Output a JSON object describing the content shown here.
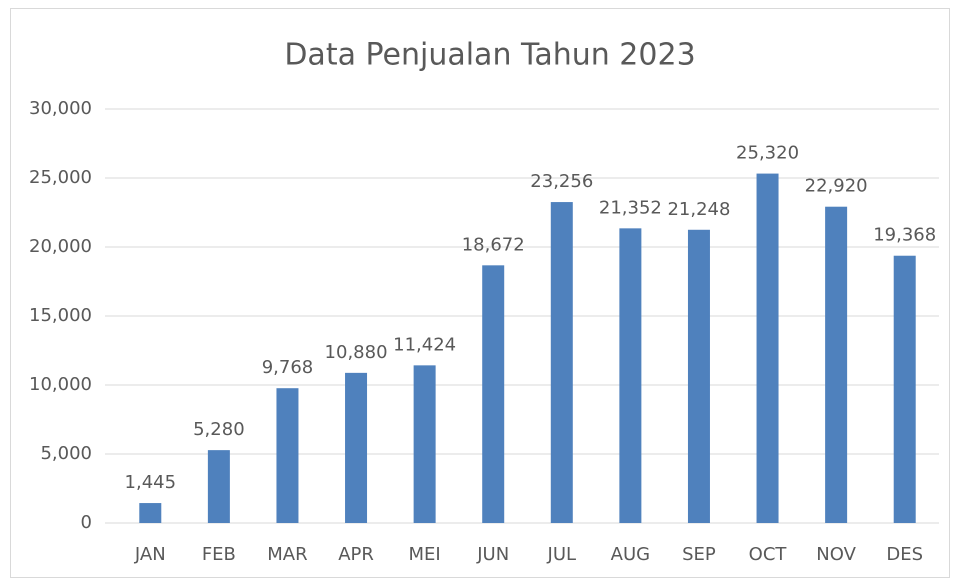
{
  "chart_data": {
    "type": "bar",
    "title": "Data Penjualan Tahun 2023",
    "categories": [
      "JAN",
      "FEB",
      "MAR",
      "APR",
      "MEI",
      "JUN",
      "JUL",
      "AUG",
      "SEP",
      "OCT",
      "NOV",
      "DES"
    ],
    "values": [
      1445,
      5280,
      9768,
      10880,
      11424,
      18672,
      23256,
      21352,
      21248,
      25320,
      22920,
      19368
    ],
    "value_labels": [
      "1,445",
      "5,280",
      "9,768",
      "10,880",
      "11,424",
      "18,672",
      "23,256",
      "21,352",
      "21,248",
      "25,320",
      "22,920",
      "19,368"
    ],
    "color": "#4f81bd",
    "ylim": [
      0,
      30000
    ],
    "yticks": [
      0,
      {
        "value": 5000,
        "label": "5,000"
      },
      {
        "value": 10000,
        "label": "10,000"
      },
      {
        "value": 15000,
        "label": "15,000"
      },
      {
        "value": 20000,
        "label": "20,000"
      },
      {
        "value": 25000,
        "label": "25,000"
      },
      {
        "value": 30000,
        "label": "30,000"
      }
    ],
    "grid": true
  }
}
